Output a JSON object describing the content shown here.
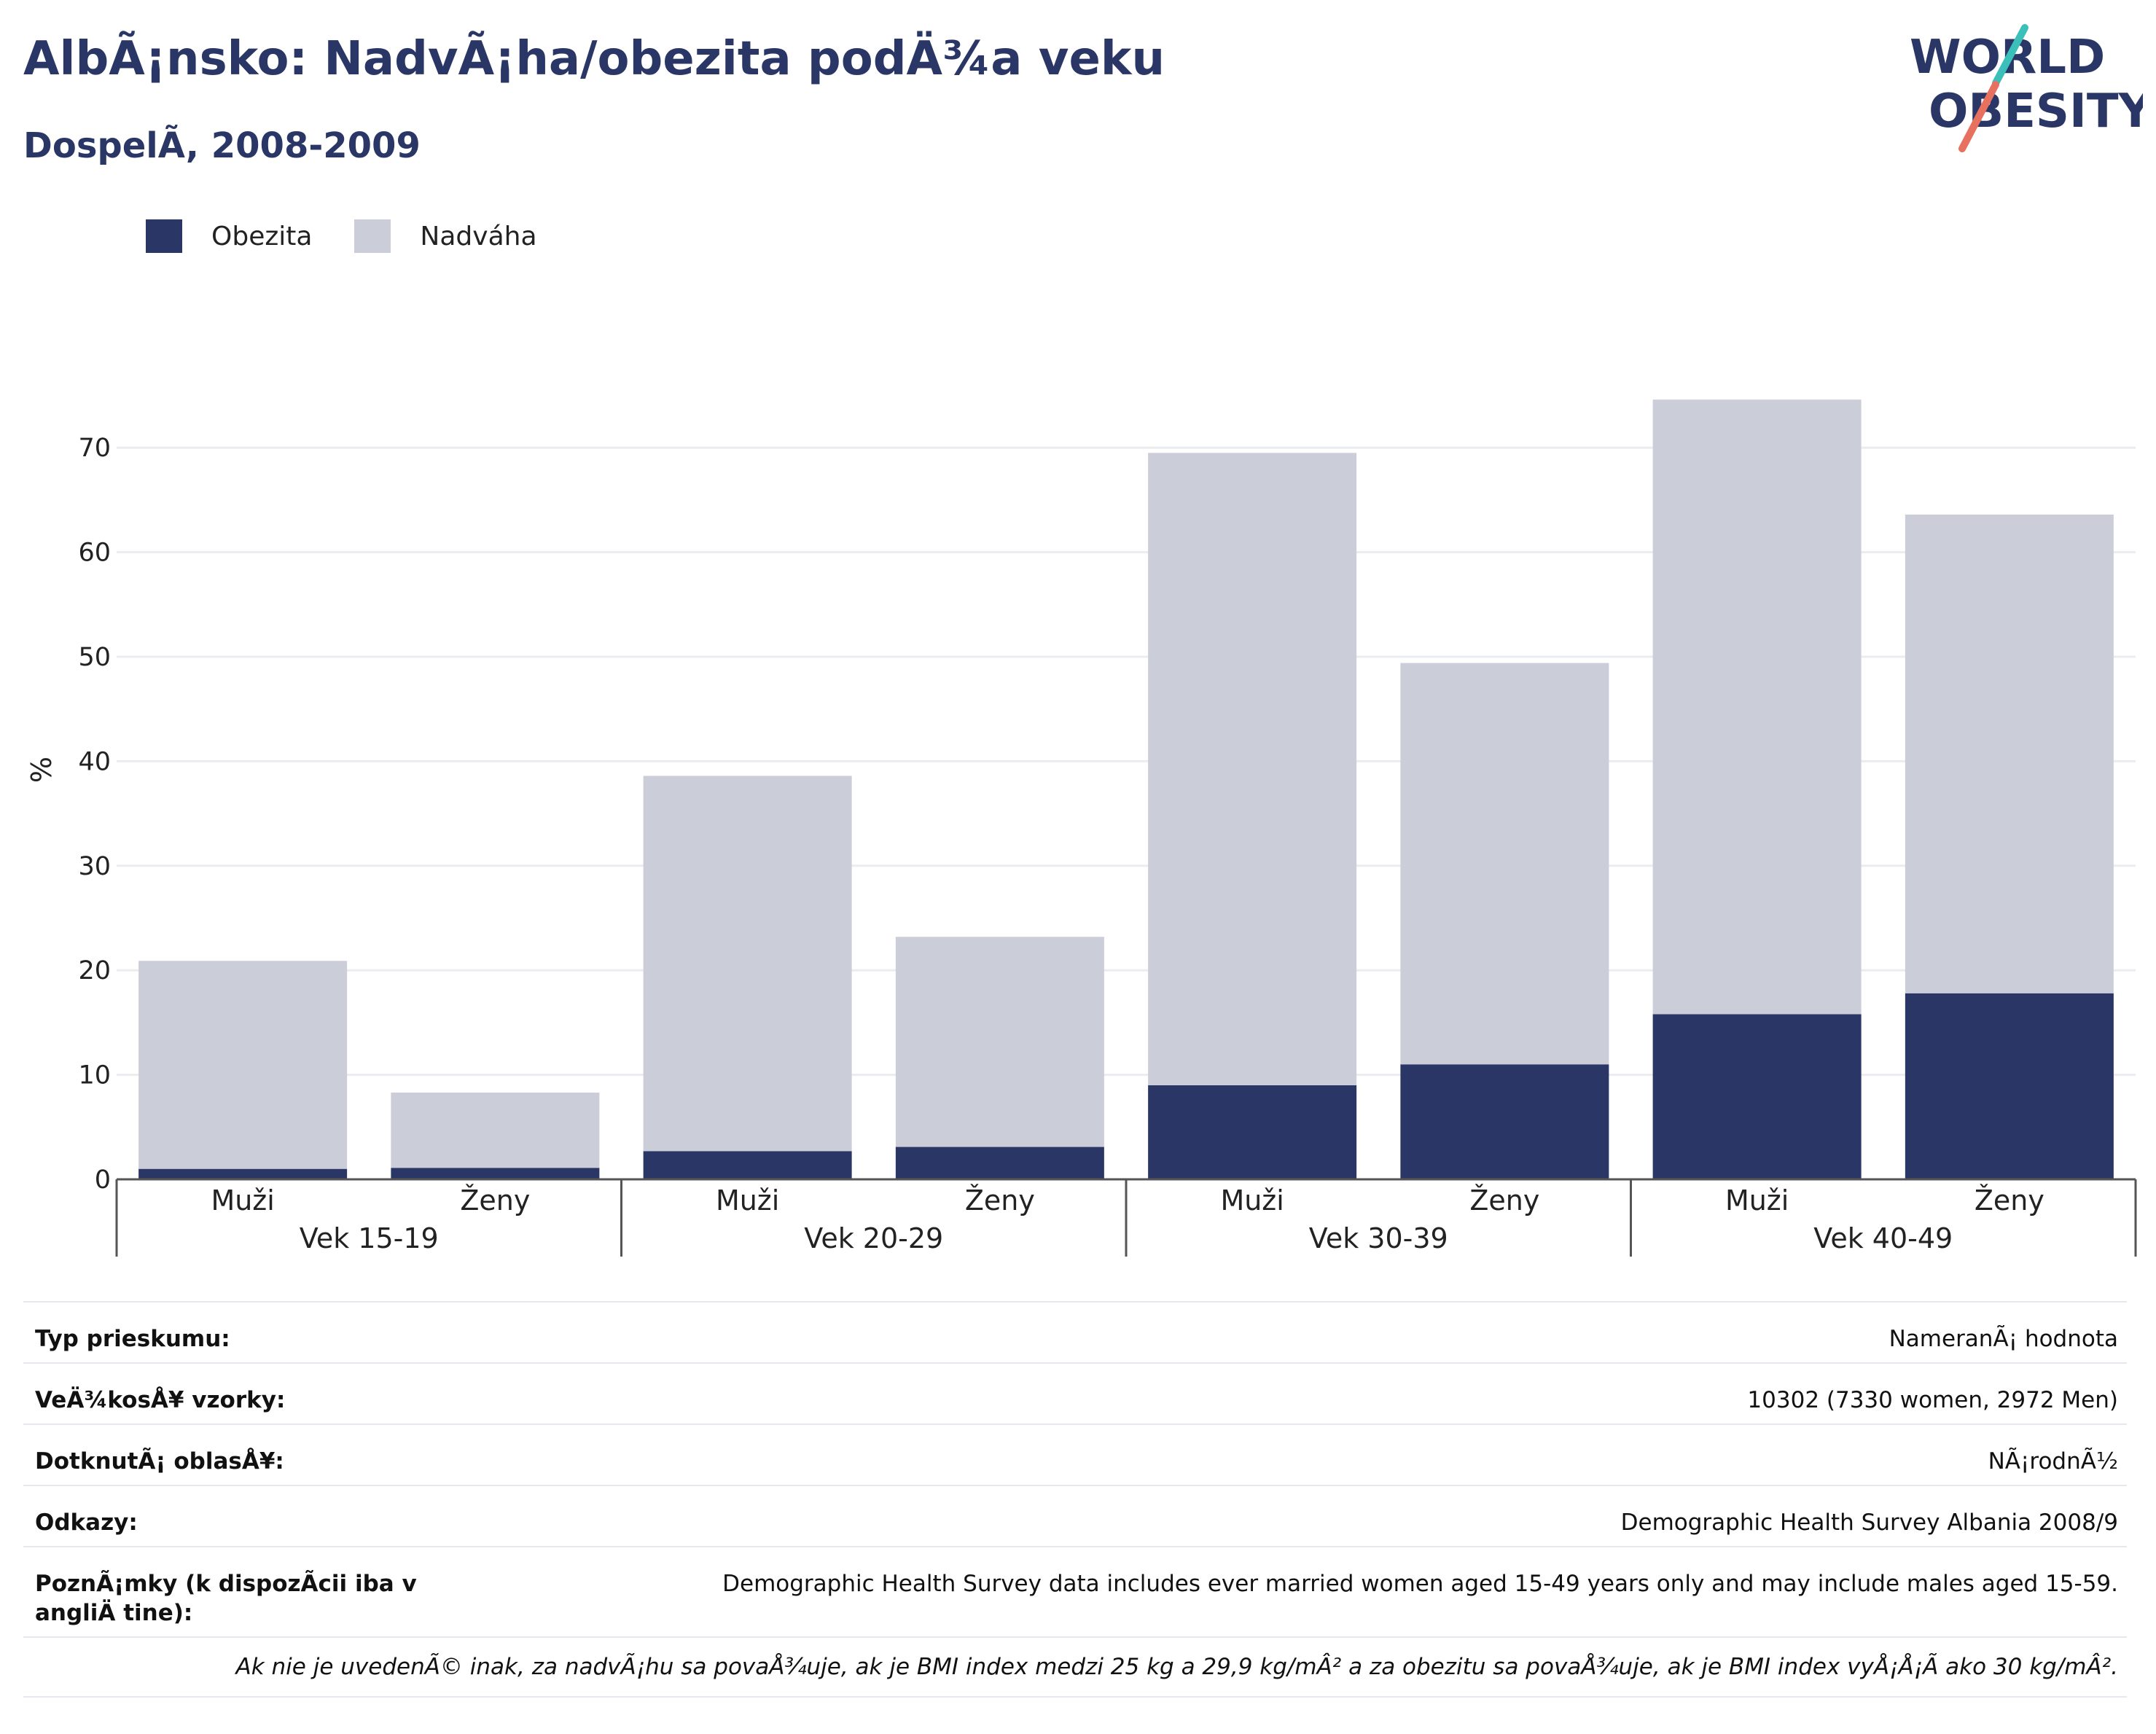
{
  "header": {
    "title": "AlbÃ¡nsko: NadvÃ¡ha/obezita podÄ¾a veku",
    "subtitle": "DospelÃ, 2008-2009"
  },
  "logo": {
    "line1": "WORLD",
    "line2": "OBESITY",
    "accent_teal": "#3bbfb9",
    "accent_coral": "#e8705f",
    "color": "#2a3766"
  },
  "legend": [
    {
      "label": "Obezita",
      "color": "#2a3766"
    },
    {
      "label": "Nadváha",
      "color": "#cbcdd8"
    }
  ],
  "chart_data": {
    "type": "bar",
    "stacked": true,
    "ylabel": "%",
    "ylim": [
      0,
      75
    ],
    "yticks": [
      0,
      10,
      20,
      30,
      40,
      50,
      60,
      70
    ],
    "grid": true,
    "legend_position": "top-left",
    "groups": [
      "Vek 15-19",
      "Vek 20-29",
      "Vek 30-39",
      "Vek 40-49"
    ],
    "categories": [
      "Muži",
      "Ženy",
      "Muži",
      "Ženy",
      "Muži",
      "Ženy",
      "Muži",
      "Ženy"
    ],
    "series": [
      {
        "name": "Obezita",
        "color": "#2a3766",
        "values": [
          1.0,
          1.1,
          2.7,
          3.1,
          9.0,
          11.0,
          15.8,
          17.8
        ]
      },
      {
        "name": "Nadváha",
        "color": "#cbcdd8",
        "values": [
          19.9,
          7.2,
          35.9,
          20.1,
          60.5,
          38.4,
          58.8,
          45.8
        ]
      }
    ]
  },
  "info": {
    "rows": [
      {
        "label": "Typ prieskumu:",
        "value": "NameranÃ¡ hodnota"
      },
      {
        "label": "VeÄ¾kosÅ¥ vzorky:",
        "value": "10302 (7330 women, 2972 Men)"
      },
      {
        "label": "DotknutÃ¡ oblasÅ¥:",
        "value": "NÃ¡rodnÃ½"
      },
      {
        "label": "Odkazy:",
        "value": "Demographic Health Survey Albania 2008/9"
      },
      {
        "label": "PoznÃ¡mky (k dispozÃcii iba v angliÄ tine):",
        "value": "Demographic Health Survey data includes ever married women aged 15-49 years only and may include males aged 15-59."
      }
    ],
    "footnote": "Ak nie je uvedenÃ© inak, za nadvÃ¡hu sa povaÅ¾uje, ak je BMI index medzi 25 kg a 29,9 kg/mÂ² a za obezitu sa povaÅ¾uje, ak je BMI index vyÅ¡Å¡Ã ako 30 kg/mÂ²."
  }
}
